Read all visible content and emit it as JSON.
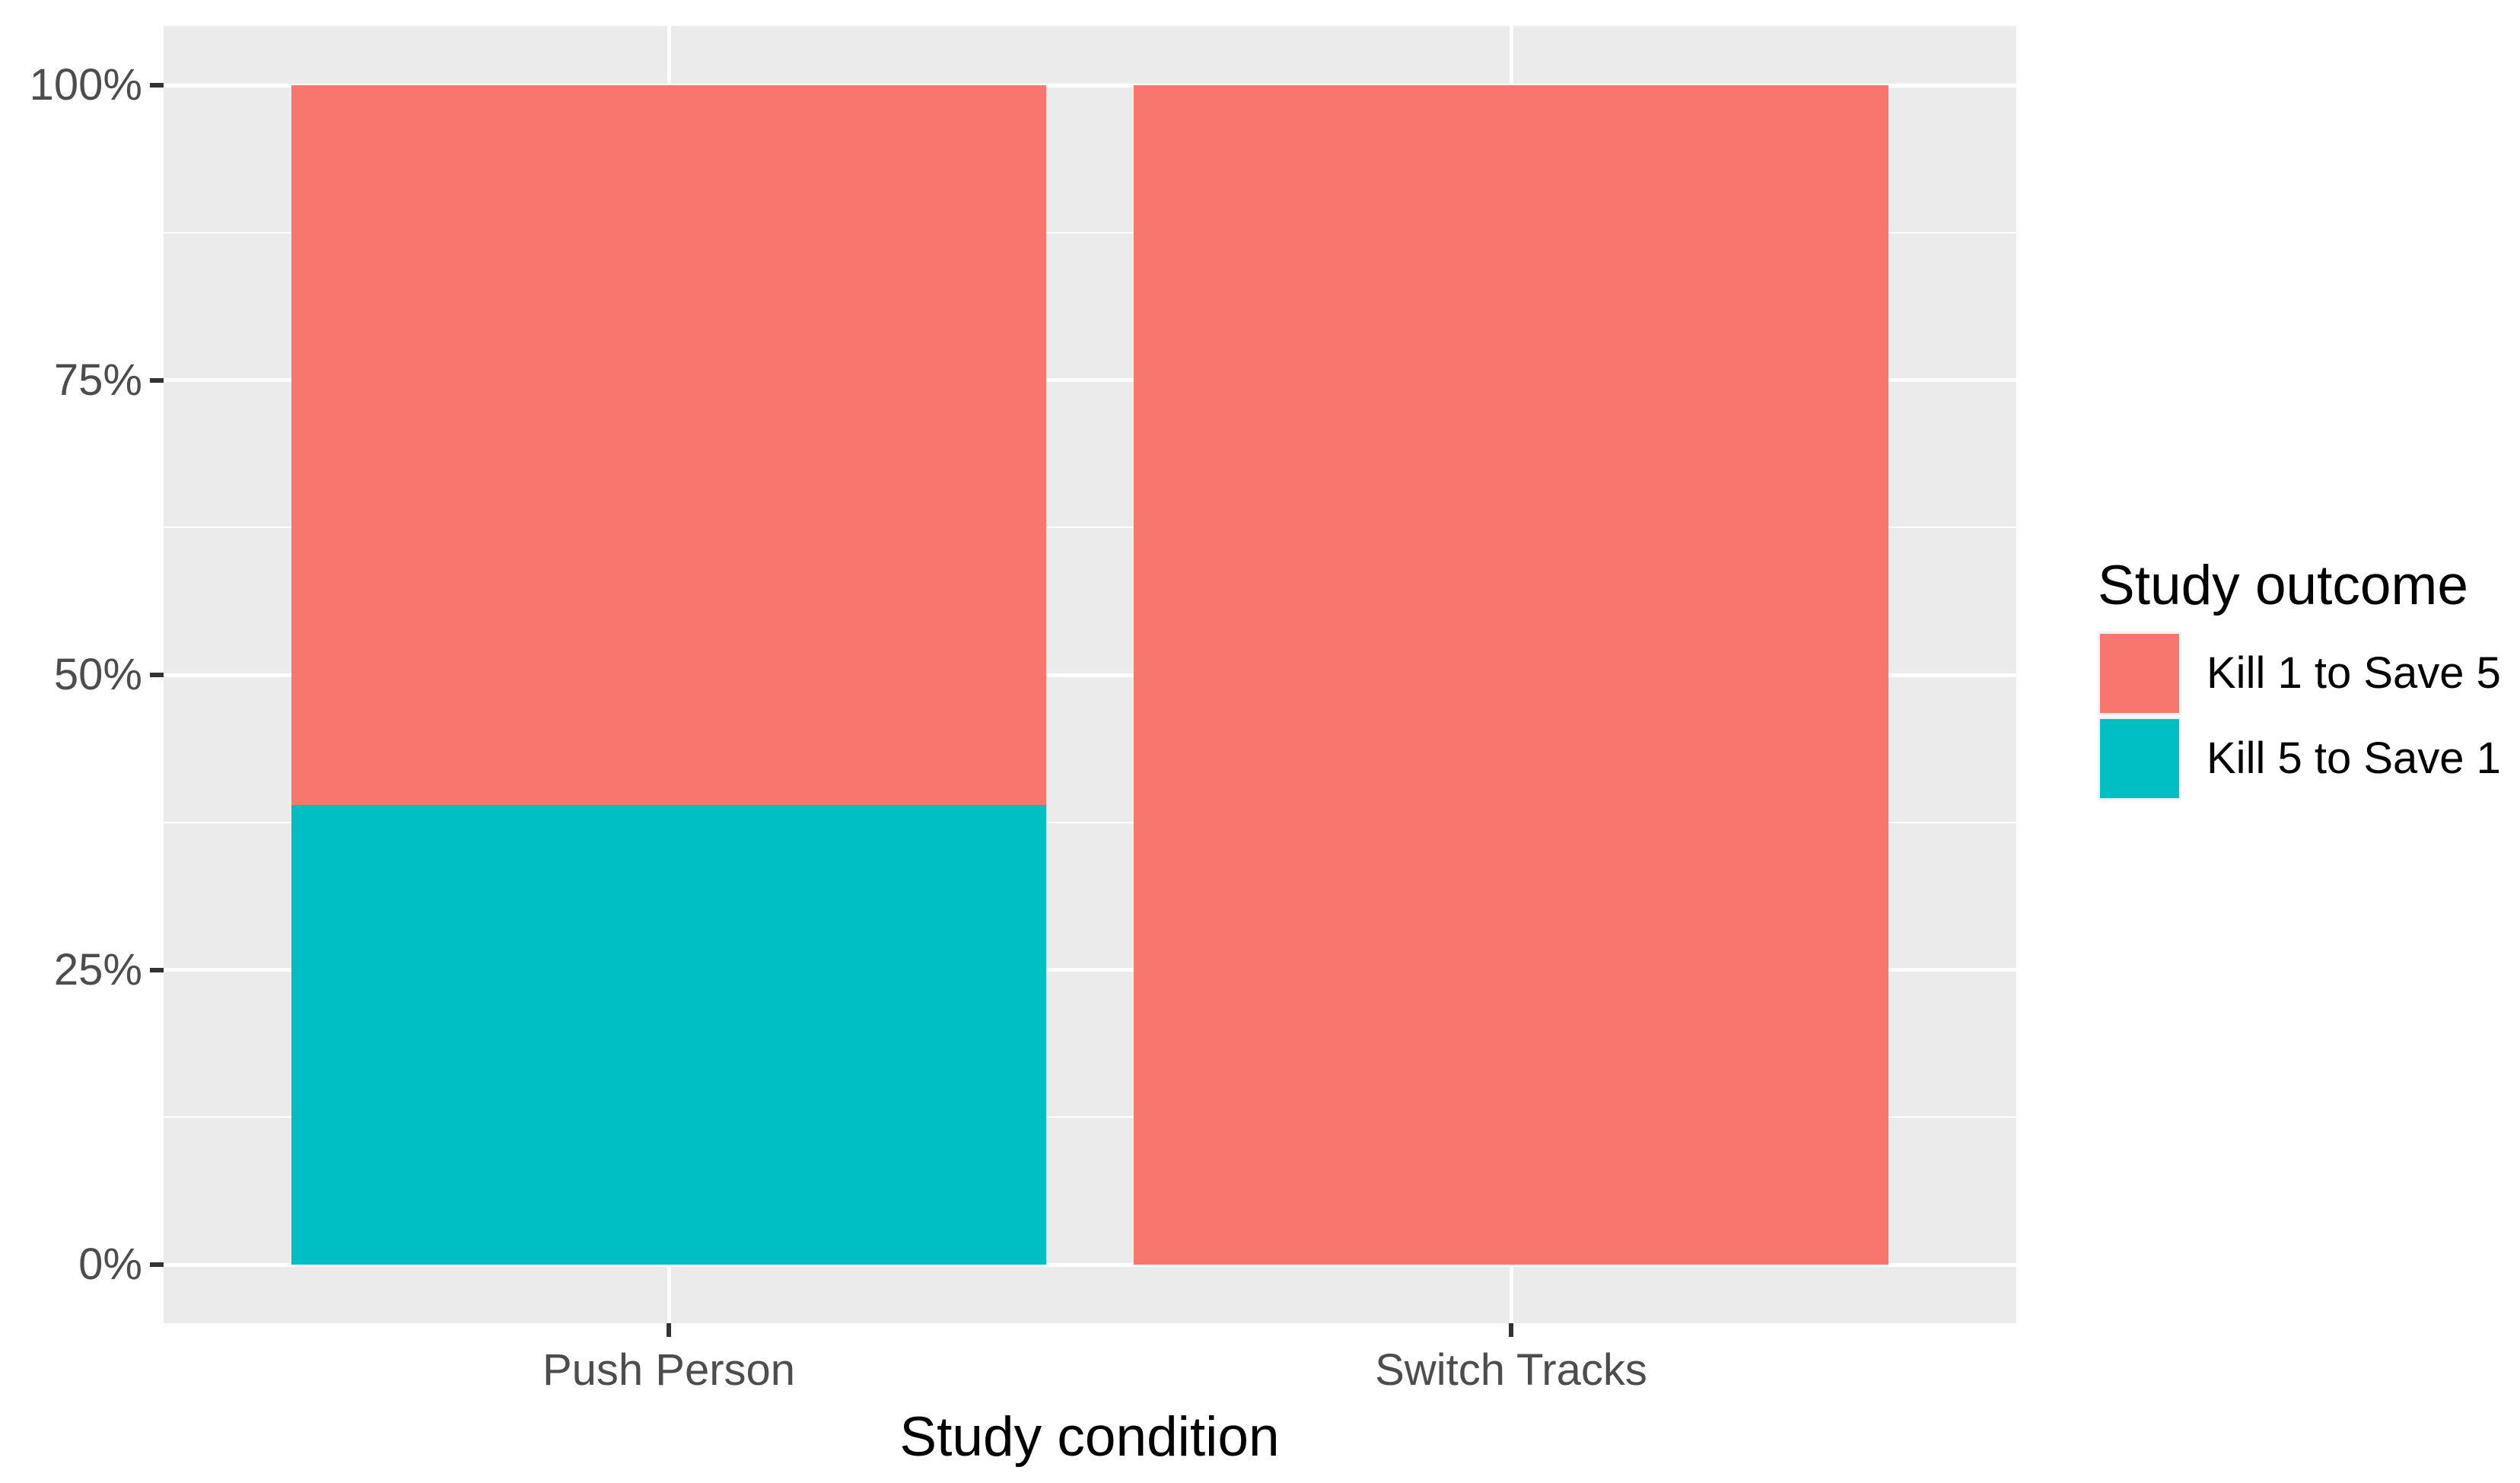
{
  "chart_data": {
    "type": "bar",
    "stacked": true,
    "orientation": "vertical",
    "title": "",
    "xlabel": "Study condition",
    "ylabel": "",
    "legend_title": "Study outcome",
    "legend_position": "right",
    "categories": [
      "Push Person",
      "Switch Tracks"
    ],
    "series": [
      {
        "name": "Kill 1 to Save 5",
        "color": "#F8766D",
        "values": [
          61,
          100
        ]
      },
      {
        "name": "Kill 5 to Save 1",
        "color": "#00BFC4",
        "values": [
          39,
          0
        ]
      }
    ],
    "y_axis": {
      "ticks": [
        0,
        25,
        50,
        75,
        100
      ],
      "tick_labels": [
        "0%",
        "25%",
        "50%",
        "75%",
        "100%"
      ],
      "minor_ticks": [
        12.5,
        37.5,
        62.5,
        87.5
      ],
      "ylim": [
        0,
        100
      ],
      "unit": "percent"
    },
    "grid": "on",
    "panel_background": "#EBEBEB",
    "gridline_color": "#ffffff",
    "axis_text_color": "#4D4D4D",
    "tick_mark_color": "#333333"
  }
}
